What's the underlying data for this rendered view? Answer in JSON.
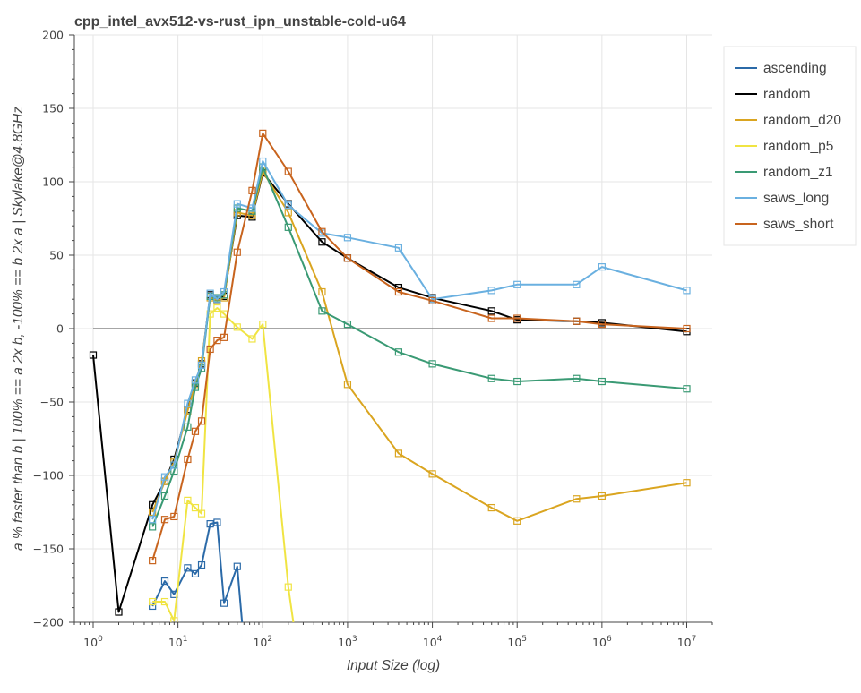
{
  "chart_data": {
    "type": "line",
    "title": "cpp_intel_avx512-vs-rust_ipn_unstable-cold-u64",
    "xlabel": "Input Size (log)",
    "ylabel": "a % faster than b | 100% == a 2x b, -100% == b 2x a | Skylake@4.8GHz",
    "x_scale": "log",
    "xlim": [
      0.6,
      20000000
    ],
    "ylim": [
      -200,
      200
    ],
    "y_ticks": [
      200,
      150,
      100,
      50,
      0,
      -50,
      -100,
      -150,
      -200
    ],
    "x_ticks": [
      {
        "base": "10",
        "exp": "0",
        "value": 1
      },
      {
        "base": "10",
        "exp": "1",
        "value": 10
      },
      {
        "base": "10",
        "exp": "2",
        "value": 100
      },
      {
        "base": "10",
        "exp": "3",
        "value": 1000
      },
      {
        "base": "10",
        "exp": "4",
        "value": 10000
      },
      {
        "base": "10",
        "exp": "5",
        "value": 100000
      },
      {
        "base": "10",
        "exp": "6",
        "value": 1000000
      },
      {
        "base": "10",
        "exp": "7",
        "value": 10000000
      }
    ],
    "grid": true,
    "legend_position": "top-right",
    "series": [
      {
        "name": "ascending",
        "color": "#2b6aa8",
        "points": [
          [
            5,
            -189
          ],
          [
            7,
            -172
          ],
          [
            9,
            -181
          ],
          [
            13,
            -163
          ],
          [
            16,
            -167
          ],
          [
            19,
            -161
          ],
          [
            24,
            -133
          ],
          [
            29,
            -132
          ],
          [
            35,
            -187
          ],
          [
            50,
            -162
          ],
          [
            60,
            -215
          ]
        ]
      },
      {
        "name": "random",
        "color": "#000000",
        "points": [
          [
            1,
            -18
          ],
          [
            2,
            -193
          ],
          [
            5,
            -120
          ],
          [
            7,
            -104
          ],
          [
            9,
            -89
          ],
          [
            13,
            -55
          ],
          [
            16,
            -37
          ],
          [
            19,
            -24
          ],
          [
            24,
            23
          ],
          [
            29,
            20
          ],
          [
            35,
            22
          ],
          [
            50,
            77
          ],
          [
            75,
            76
          ],
          [
            100,
            106
          ],
          [
            200,
            85
          ],
          [
            500,
            59
          ],
          [
            1000,
            48
          ],
          [
            4000,
            28
          ],
          [
            10000,
            21
          ],
          [
            50000,
            12
          ],
          [
            100000,
            6
          ],
          [
            500000,
            5
          ],
          [
            1000000,
            4
          ],
          [
            10000000,
            -2
          ]
        ]
      },
      {
        "name": "random_d20",
        "color": "#daa520",
        "points": [
          [
            5,
            -125
          ],
          [
            7,
            -104
          ],
          [
            9,
            -91
          ],
          [
            13,
            -56
          ],
          [
            16,
            -38
          ],
          [
            19,
            -22
          ],
          [
            24,
            21
          ],
          [
            29,
            19
          ],
          [
            35,
            21
          ],
          [
            50,
            79
          ],
          [
            75,
            77
          ],
          [
            100,
            107
          ],
          [
            200,
            79
          ],
          [
            500,
            25
          ],
          [
            1000,
            -38
          ],
          [
            4000,
            -85
          ],
          [
            10000,
            -99
          ],
          [
            50000,
            -122
          ],
          [
            100000,
            -131
          ],
          [
            500000,
            -116
          ],
          [
            1000000,
            -114
          ],
          [
            10000000,
            -105
          ]
        ]
      },
      {
        "name": "random_p5",
        "color": "#f0e442",
        "points": [
          [
            5,
            -186
          ],
          [
            7,
            -186
          ],
          [
            9,
            -199
          ],
          [
            13,
            -117
          ],
          [
            16,
            -122
          ],
          [
            19,
            -126
          ],
          [
            24,
            10
          ],
          [
            29,
            14
          ],
          [
            35,
            10
          ],
          [
            50,
            1
          ],
          [
            75,
            -7
          ],
          [
            100,
            3
          ],
          [
            200,
            -176
          ],
          [
            250,
            -215
          ]
        ]
      },
      {
        "name": "random_z1",
        "color": "#3a9a74",
        "points": [
          [
            5,
            -135
          ],
          [
            7,
            -114
          ],
          [
            9,
            -97
          ],
          [
            13,
            -67
          ],
          [
            16,
            -40
          ],
          [
            19,
            -27
          ],
          [
            24,
            22
          ],
          [
            29,
            21
          ],
          [
            35,
            23
          ],
          [
            50,
            82
          ],
          [
            75,
            80
          ],
          [
            100,
            110
          ],
          [
            200,
            69
          ],
          [
            500,
            12
          ],
          [
            1000,
            3
          ],
          [
            4000,
            -16
          ],
          [
            10000,
            -24
          ],
          [
            50000,
            -34
          ],
          [
            100000,
            -36
          ],
          [
            500000,
            -34
          ],
          [
            1000000,
            -36
          ],
          [
            10000000,
            -41
          ]
        ]
      },
      {
        "name": "saws_long",
        "color": "#6ab0e0",
        "points": [
          [
            5,
            -130
          ],
          [
            7,
            -101
          ],
          [
            9,
            -93
          ],
          [
            13,
            -51
          ],
          [
            16,
            -35
          ],
          [
            19,
            -25
          ],
          [
            24,
            24
          ],
          [
            29,
            20
          ],
          [
            35,
            25
          ],
          [
            50,
            85
          ],
          [
            75,
            82
          ],
          [
            100,
            114
          ],
          [
            200,
            84
          ],
          [
            500,
            65
          ],
          [
            1000,
            62
          ],
          [
            4000,
            55
          ],
          [
            10000,
            20
          ],
          [
            50000,
            26
          ],
          [
            100000,
            30
          ],
          [
            500000,
            30
          ],
          [
            1000000,
            42
          ],
          [
            10000000,
            26
          ]
        ]
      },
      {
        "name": "saws_short",
        "color": "#c8641e",
        "points": [
          [
            5,
            -158
          ],
          [
            7,
            -130
          ],
          [
            9,
            -128
          ],
          [
            13,
            -89
          ],
          [
            16,
            -70
          ],
          [
            19,
            -63
          ],
          [
            24,
            -14
          ],
          [
            29,
            -8
          ],
          [
            35,
            -6
          ],
          [
            50,
            52
          ],
          [
            75,
            94
          ],
          [
            100,
            133
          ],
          [
            200,
            107
          ],
          [
            500,
            66
          ],
          [
            1000,
            48
          ],
          [
            4000,
            25
          ],
          [
            10000,
            19
          ],
          [
            50000,
            7
          ],
          [
            100000,
            7
          ],
          [
            500000,
            5
          ],
          [
            1000000,
            3
          ],
          [
            10000000,
            0
          ]
        ]
      }
    ]
  }
}
